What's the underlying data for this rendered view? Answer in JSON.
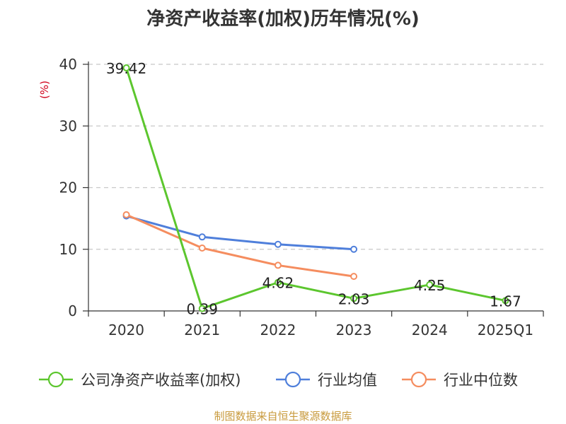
{
  "chart_data": {
    "type": "line",
    "title": "净资产收益率(加权)历年情况(%)",
    "ylabel": "(%)",
    "xlabel": "",
    "ylim": [
      0,
      40
    ],
    "yticks": [
      0,
      10,
      20,
      30,
      40
    ],
    "grid": true,
    "legend_position": "bottom",
    "categories": [
      "2020",
      "2021",
      "2022",
      "2023",
      "2024",
      "2025Q1"
    ],
    "series": [
      {
        "name": "公司净资产收益率(加权)",
        "color": "#5cc62e",
        "values": [
          39.42,
          0.39,
          4.62,
          2.03,
          4.25,
          1.67
        ],
        "labels": [
          "39.42",
          "0.39",
          "4.62",
          "2.03",
          "4.25",
          "1.67"
        ]
      },
      {
        "name": "行业均值",
        "color": "#4f7fdb",
        "values": [
          15.4,
          12.0,
          10.8,
          10.0,
          null,
          null
        ]
      },
      {
        "name": "行业中位数",
        "color": "#f58d5f",
        "values": [
          15.6,
          10.2,
          7.4,
          5.6,
          null,
          null
        ]
      }
    ]
  },
  "ylabel_color": "#d0021b",
  "source_note": "制图数据来自恒生聚源数据库"
}
